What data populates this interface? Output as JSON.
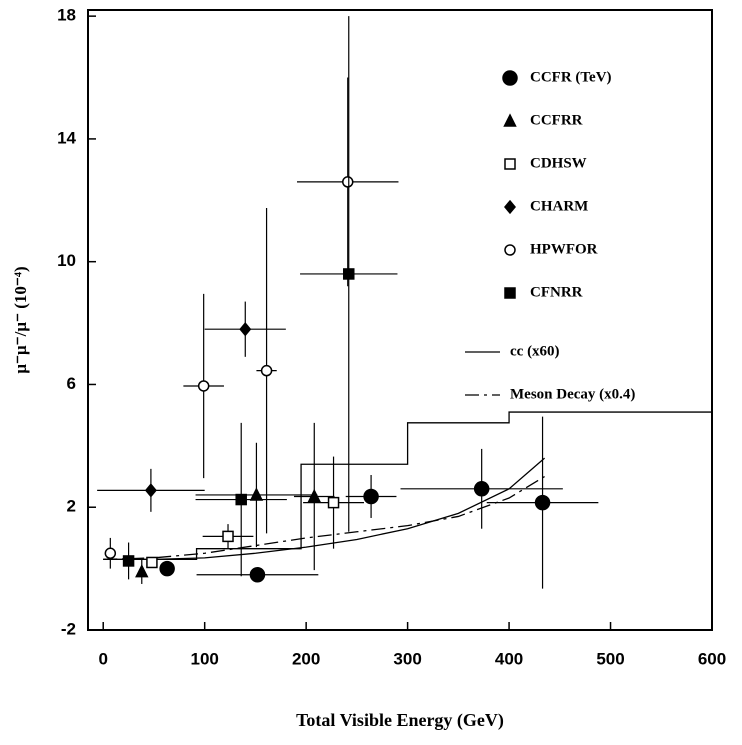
{
  "chart_data": {
    "type": "scatter",
    "xlabel": "Total Visible Energy (GeV)",
    "ylabel": "μ⁻μ⁻/μ⁻ (10⁻⁴)",
    "xlim": [
      -15,
      600
    ],
    "ylim": [
      -2,
      18.2
    ],
    "xticks": [
      0,
      100,
      200,
      300,
      400,
      500,
      600
    ],
    "yticks": [
      -2,
      2,
      6,
      10,
      14,
      18
    ],
    "color": "#000000",
    "series": [
      {
        "name": "CCFR (TeV)",
        "marker": "circle",
        "filled": true,
        "x": [
          63,
          152,
          264,
          373,
          433
        ],
        "values": [
          0,
          -0.2,
          2.35,
          2.6,
          2.15
        ],
        "xerr": [
          0,
          60,
          25,
          80,
          55
        ],
        "yerr": [
          0,
          0.2,
          0.7,
          1.3,
          2.8
        ]
      },
      {
        "name": "CCFRR",
        "marker": "triangle",
        "filled": true,
        "x": [
          38,
          151,
          208
        ],
        "values": [
          -0.1,
          2.4,
          2.35
        ],
        "xerr": [
          0,
          60,
          20
        ],
        "yerr": [
          0.4,
          1.7,
          2.4
        ]
      },
      {
        "name": "CDHSW",
        "marker": "square",
        "filled": false,
        "x": [
          48,
          123,
          227
        ],
        "values": [
          0.2,
          1.05,
          2.15
        ],
        "xerr": [
          0,
          25,
          30
        ],
        "yerr": [
          0.1,
          0.4,
          1.5
        ]
      },
      {
        "name": "CHARM",
        "marker": "diamond",
        "filled": true,
        "x": [
          47,
          140
        ],
        "values": [
          2.55,
          7.8
        ],
        "xerr": [
          53,
          40
        ],
        "yerr": [
          0.7,
          0.9
        ]
      },
      {
        "name": "HPWFOR",
        "marker": "circle",
        "filled": false,
        "x": [
          7,
          99,
          161,
          241
        ],
        "values": [
          0.5,
          5.95,
          6.45,
          12.6
        ],
        "xerr": [
          0,
          20,
          10,
          50
        ],
        "yerr": [
          0.5,
          3,
          5.3,
          3.4
        ]
      },
      {
        "name": "CFNRR",
        "marker": "square",
        "filled": true,
        "x": [
          25,
          136,
          242
        ],
        "values": [
          0.25,
          2.25,
          9.6
        ],
        "xerr": [
          0,
          45,
          48
        ],
        "yerr": [
          0.6,
          2.5,
          8.4
        ]
      }
    ],
    "lines": [
      {
        "name": "cc (x60)",
        "dash": "solid",
        "x": [
          0,
          50,
          100,
          150,
          200,
          250,
          300,
          350,
          400,
          435
        ],
        "y": [
          0.3,
          0.3,
          0.35,
          0.5,
          0.7,
          0.95,
          1.3,
          1.8,
          2.6,
          3.6
        ]
      },
      {
        "name": "Meson Decay (x0.4)",
        "dash": "dashdot",
        "x": [
          0,
          50,
          100,
          150,
          200,
          250,
          300,
          350,
          400,
          435
        ],
        "y": [
          0.3,
          0.35,
          0.5,
          0.75,
          1.0,
          1.2,
          1.4,
          1.7,
          2.3,
          3.0
        ]
      },
      {
        "dash": "solid",
        "x": [
          0,
          92,
          92,
          195,
          195,
          300,
          300,
          400,
          400,
          600
        ],
        "y": [
          0.3,
          0.3,
          0.65,
          0.65,
          3.4,
          3.4,
          4.75,
          4.75,
          5.1,
          5.1
        ]
      }
    ]
  }
}
